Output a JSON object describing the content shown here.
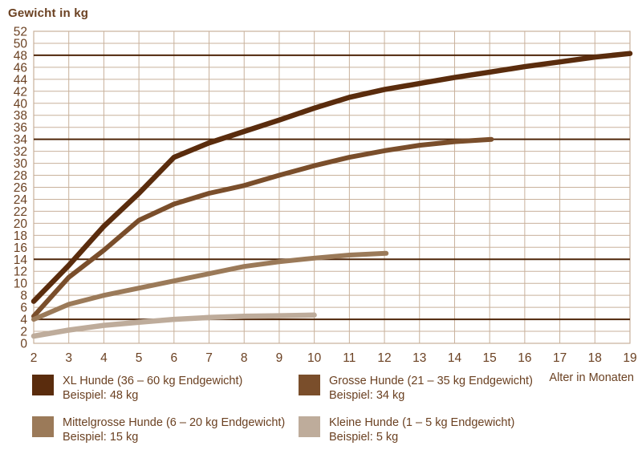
{
  "chart_data": {
    "type": "line",
    "title": "Gewicht in kg",
    "xlabel": "Alter in Monaten",
    "ylabel": "Gewicht in kg",
    "xlim": [
      2,
      19
    ],
    "ylim": [
      0,
      52
    ],
    "x_tick_step": 1,
    "y_tick_step": 2,
    "grid": true,
    "grid_color": "#c8b19b",
    "reference_line_color": "#4f2609",
    "reference_lines_kg": [
      48,
      34,
      14,
      4
    ],
    "text_color": "#6b4122",
    "legend_position": "bottom",
    "series": [
      {
        "name": "XL Hunde (36 – 60 kg Endgewicht)",
        "example": "Beispiel: 48 kg",
        "color": "#5a2c0d",
        "x": [
          2,
          3,
          4,
          5,
          6,
          7,
          8,
          9,
          10,
          11,
          12,
          13,
          14,
          15,
          16,
          17,
          18,
          19
        ],
        "values": [
          7,
          13,
          19.5,
          25,
          31,
          33.4,
          35.3,
          37.2,
          39.2,
          41,
          42.3,
          43.3,
          44.3,
          45.2,
          46.1,
          46.9,
          47.7,
          48.3
        ]
      },
      {
        "name": "Grosse Hunde (21 – 35 kg Endgewicht)",
        "example": "Beispiel: 34 kg",
        "color": "#7a4e2b",
        "x": [
          2,
          3,
          4,
          5,
          6,
          7,
          8,
          9,
          10,
          11,
          12,
          13,
          14,
          15.05
        ],
        "values": [
          4.5,
          11,
          15.5,
          20.5,
          23.2,
          25,
          26.3,
          28,
          29.6,
          31,
          32.1,
          33,
          33.6,
          34
        ]
      },
      {
        "name": "Mittelgrosse Hunde (6 – 20 kg Endgewicht)",
        "example": "Beispiel: 15 kg",
        "color": "#9b7a59",
        "x": [
          2,
          3,
          4,
          5,
          6,
          7,
          8,
          9,
          10,
          11,
          12.05
        ],
        "values": [
          4,
          6.5,
          8,
          9.2,
          10.4,
          11.6,
          12.8,
          13.6,
          14.2,
          14.7,
          15
        ]
      },
      {
        "name": "Kleine Hunde (1 – 5 kg Endgewicht)",
        "example": "Beispiel: 5 kg",
        "color": "#beac9b",
        "x": [
          2,
          3,
          4,
          5,
          6,
          7,
          8,
          9,
          10
        ],
        "values": [
          1.2,
          2.2,
          3,
          3.5,
          4,
          4.3,
          4.5,
          4.6,
          4.7
        ]
      }
    ]
  }
}
